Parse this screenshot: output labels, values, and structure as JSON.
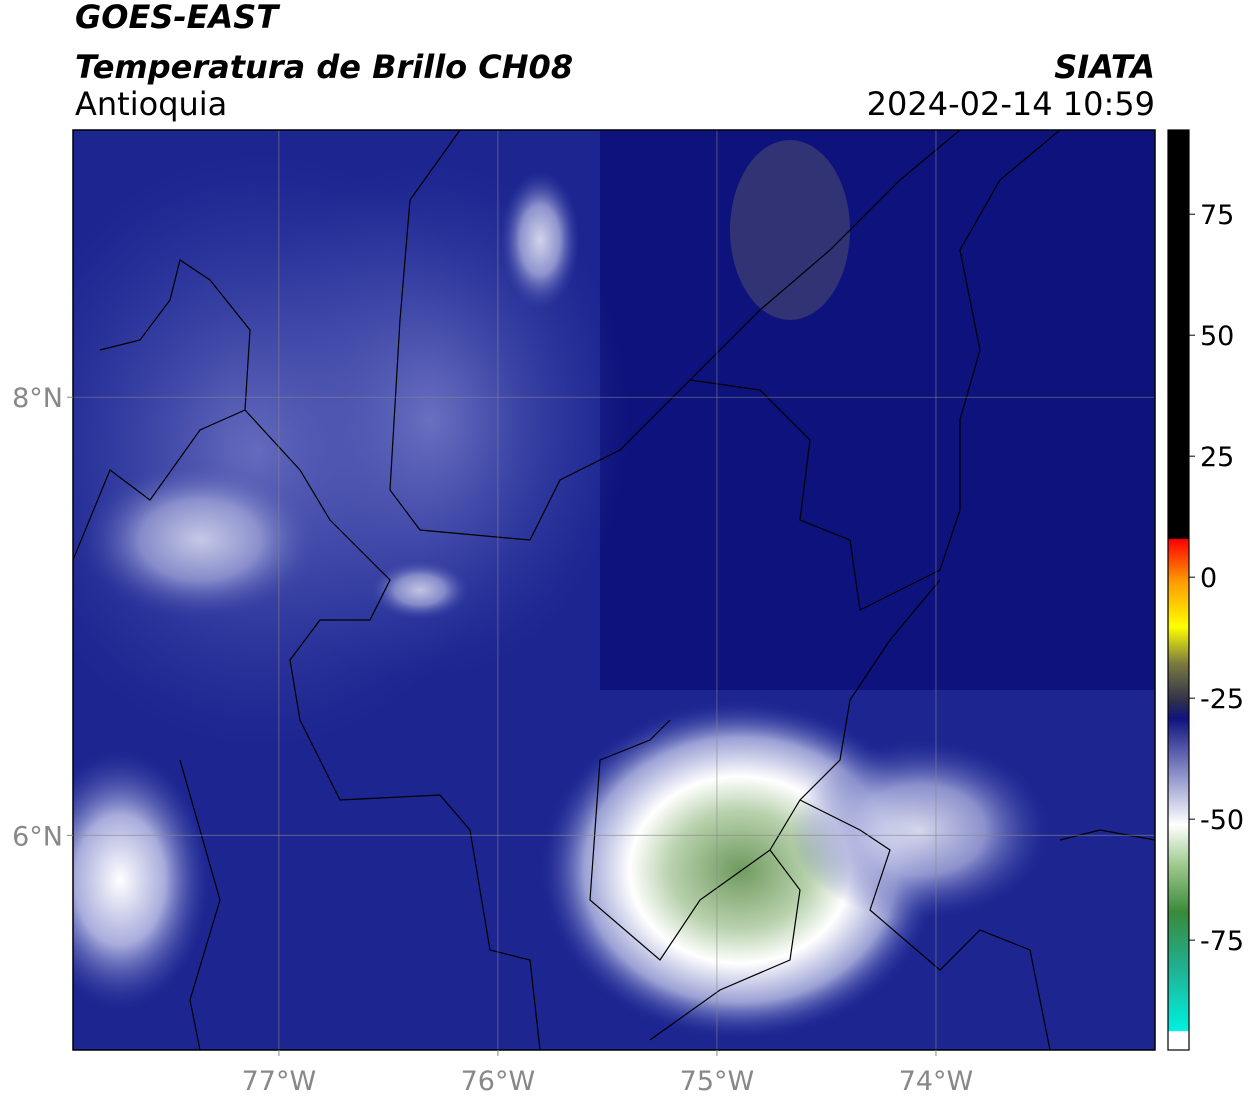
{
  "header": {
    "title": "GOES-EAST",
    "subtitle": "Temperatura de Brillo CH08",
    "region": "Antioquia",
    "source": "SIATA",
    "datetime": "2024-02-14 10:59"
  },
  "map": {
    "lonlim": [
      -77.94,
      -73.0
    ],
    "latlim": [
      5.02,
      9.22
    ],
    "lonticks": [
      {
        "value": -77,
        "label": "77°W"
      },
      {
        "value": -76,
        "label": "76°W"
      },
      {
        "value": -75,
        "label": "75°W"
      },
      {
        "value": -74,
        "label": "74°W"
      }
    ],
    "latticks": [
      {
        "value": 8,
        "label": "8°N"
      },
      {
        "value": 6,
        "label": "6°N"
      }
    ],
    "grid": true
  },
  "colorbar": {
    "lim": [
      -97.7,
      92.4
    ],
    "ticks": [
      75,
      50,
      25,
      0,
      -25,
      -50,
      -75
    ]
  }
}
